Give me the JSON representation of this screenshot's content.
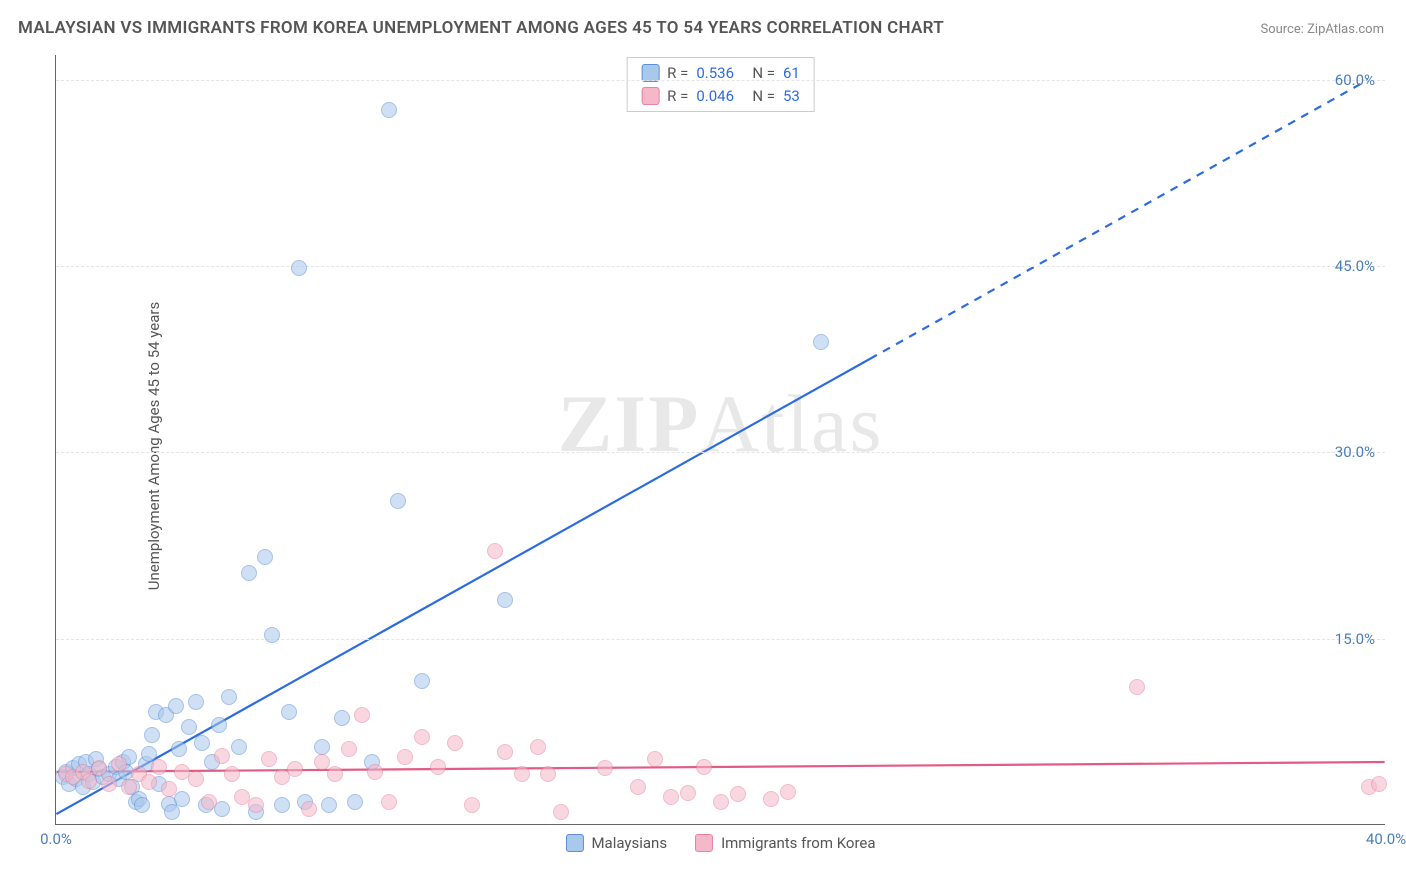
{
  "title": "MALAYSIAN VS IMMIGRANTS FROM KOREA UNEMPLOYMENT AMONG AGES 45 TO 54 YEARS CORRELATION CHART",
  "source": "Source: ZipAtlas.com",
  "y_axis_label": "Unemployment Among Ages 45 to 54 years",
  "watermark": {
    "bold": "ZIP",
    "light": "Atlas"
  },
  "chart": {
    "type": "scatter",
    "xlim": [
      0,
      40
    ],
    "ylim": [
      0,
      62
    ],
    "x_ticks": [
      {
        "value": 0,
        "label": "0.0%"
      },
      {
        "value": 40,
        "label": "40.0%"
      }
    ],
    "y_ticks": [
      {
        "value": 15,
        "label": "15.0%"
      },
      {
        "value": 30,
        "label": "30.0%"
      },
      {
        "value": 45,
        "label": "45.0%"
      },
      {
        "value": 60,
        "label": "60.0%"
      }
    ],
    "tick_color": "#4a7ebb",
    "grid_color": "#e5e5e5",
    "axis_color": "#666666",
    "background_color": "#ffffff",
    "marker_radius": 8,
    "series": [
      {
        "name": "Malaysians",
        "fill": "#a8c8ec",
        "stroke": "#5b8fd6",
        "fill_opacity": 0.55,
        "R": "0.536",
        "N": "61",
        "trend": {
          "color": "#2d6cdf",
          "width": 2.2,
          "solid_from": [
            0,
            0.8
          ],
          "solid_to": [
            24.5,
            37.5
          ],
          "dashed_to": [
            39.5,
            60.0
          ]
        },
        "points": [
          [
            0.2,
            3.8
          ],
          [
            0.3,
            4.2
          ],
          [
            0.4,
            3.2
          ],
          [
            0.5,
            4.5
          ],
          [
            0.6,
            3.6
          ],
          [
            0.7,
            4.8
          ],
          [
            0.8,
            3.0
          ],
          [
            0.9,
            5.0
          ],
          [
            1.0,
            4.0
          ],
          [
            1.1,
            3.4
          ],
          [
            1.2,
            5.2
          ],
          [
            1.3,
            4.4
          ],
          [
            1.4,
            3.8
          ],
          [
            1.6,
            4.0
          ],
          [
            1.8,
            4.6
          ],
          [
            1.9,
            3.6
          ],
          [
            2.0,
            5.0
          ],
          [
            2.1,
            4.2
          ],
          [
            2.2,
            5.4
          ],
          [
            2.3,
            3.0
          ],
          [
            2.4,
            1.8
          ],
          [
            2.5,
            2.0
          ],
          [
            2.6,
            1.5
          ],
          [
            2.7,
            4.8
          ],
          [
            2.8,
            5.6
          ],
          [
            2.9,
            7.2
          ],
          [
            3.0,
            9.0
          ],
          [
            3.1,
            3.2
          ],
          [
            3.3,
            8.8
          ],
          [
            3.4,
            1.6
          ],
          [
            3.5,
            1.0
          ],
          [
            3.6,
            9.5
          ],
          [
            3.7,
            6.0
          ],
          [
            3.8,
            2.0
          ],
          [
            4.0,
            7.8
          ],
          [
            4.2,
            9.8
          ],
          [
            4.4,
            6.5
          ],
          [
            4.5,
            1.5
          ],
          [
            4.7,
            5.0
          ],
          [
            4.9,
            8.0
          ],
          [
            5.0,
            1.2
          ],
          [
            5.2,
            10.2
          ],
          [
            5.5,
            6.2
          ],
          [
            5.8,
            20.2
          ],
          [
            6.0,
            1.0
          ],
          [
            6.3,
            21.5
          ],
          [
            6.5,
            15.2
          ],
          [
            6.8,
            1.5
          ],
          [
            7.0,
            9.0
          ],
          [
            7.3,
            44.8
          ],
          [
            7.5,
            1.8
          ],
          [
            8.0,
            6.2
          ],
          [
            8.2,
            1.5
          ],
          [
            8.6,
            8.5
          ],
          [
            9.0,
            1.8
          ],
          [
            9.5,
            5.0
          ],
          [
            10.0,
            57.5
          ],
          [
            10.3,
            26.0
          ],
          [
            11.0,
            11.5
          ],
          [
            13.5,
            18.0
          ],
          [
            23.0,
            38.8
          ]
        ]
      },
      {
        "name": "Immigrants from Korea",
        "fill": "#f5b8c8",
        "stroke": "#e882a0",
        "fill_opacity": 0.55,
        "R": "0.046",
        "N": "53",
        "trend": {
          "color": "#e25b84",
          "width": 2.2,
          "solid_from": [
            0,
            4.2
          ],
          "solid_to": [
            40,
            5.0
          ],
          "dashed_to": null
        },
        "points": [
          [
            0.3,
            4.0
          ],
          [
            0.5,
            3.8
          ],
          [
            0.8,
            4.2
          ],
          [
            1.0,
            3.5
          ],
          [
            1.3,
            4.5
          ],
          [
            1.6,
            3.2
          ],
          [
            1.9,
            4.8
          ],
          [
            2.2,
            3.0
          ],
          [
            2.5,
            4.0
          ],
          [
            2.8,
            3.4
          ],
          [
            3.1,
            4.6
          ],
          [
            3.4,
            2.8
          ],
          [
            3.8,
            4.2
          ],
          [
            4.2,
            3.6
          ],
          [
            4.6,
            1.8
          ],
          [
            5.0,
            5.5
          ],
          [
            5.3,
            4.0
          ],
          [
            5.6,
            2.2
          ],
          [
            6.0,
            1.5
          ],
          [
            6.4,
            5.2
          ],
          [
            6.8,
            3.8
          ],
          [
            7.2,
            4.4
          ],
          [
            7.6,
            1.2
          ],
          [
            8.0,
            5.0
          ],
          [
            8.4,
            4.0
          ],
          [
            8.8,
            6.0
          ],
          [
            9.2,
            8.8
          ],
          [
            9.6,
            4.2
          ],
          [
            10.0,
            1.8
          ],
          [
            10.5,
            5.4
          ],
          [
            11.0,
            7.0
          ],
          [
            11.5,
            4.6
          ],
          [
            12.0,
            6.5
          ],
          [
            12.5,
            1.5
          ],
          [
            13.2,
            22.0
          ],
          [
            13.5,
            5.8
          ],
          [
            14.0,
            4.0
          ],
          [
            14.5,
            6.2
          ],
          [
            14.8,
            4.0
          ],
          [
            15.2,
            1.0
          ],
          [
            16.5,
            4.5
          ],
          [
            17.5,
            3.0
          ],
          [
            18.0,
            5.2
          ],
          [
            18.5,
            2.2
          ],
          [
            19.0,
            2.5
          ],
          [
            19.5,
            4.6
          ],
          [
            20.0,
            1.8
          ],
          [
            20.5,
            2.4
          ],
          [
            21.5,
            2.0
          ],
          [
            22.0,
            2.6
          ],
          [
            32.5,
            11.0
          ],
          [
            39.5,
            3.0
          ],
          [
            39.8,
            3.2
          ]
        ]
      }
    ],
    "legend": {
      "items": [
        {
          "label": "Malaysians",
          "fill": "#a8c8ec",
          "stroke": "#5b8fd6"
        },
        {
          "label": "Immigrants from Korea",
          "fill": "#f5b8c8",
          "stroke": "#e882a0"
        }
      ]
    },
    "stats_box": {
      "stat_color": "#2d6cdf",
      "label_color": "#555555"
    }
  }
}
